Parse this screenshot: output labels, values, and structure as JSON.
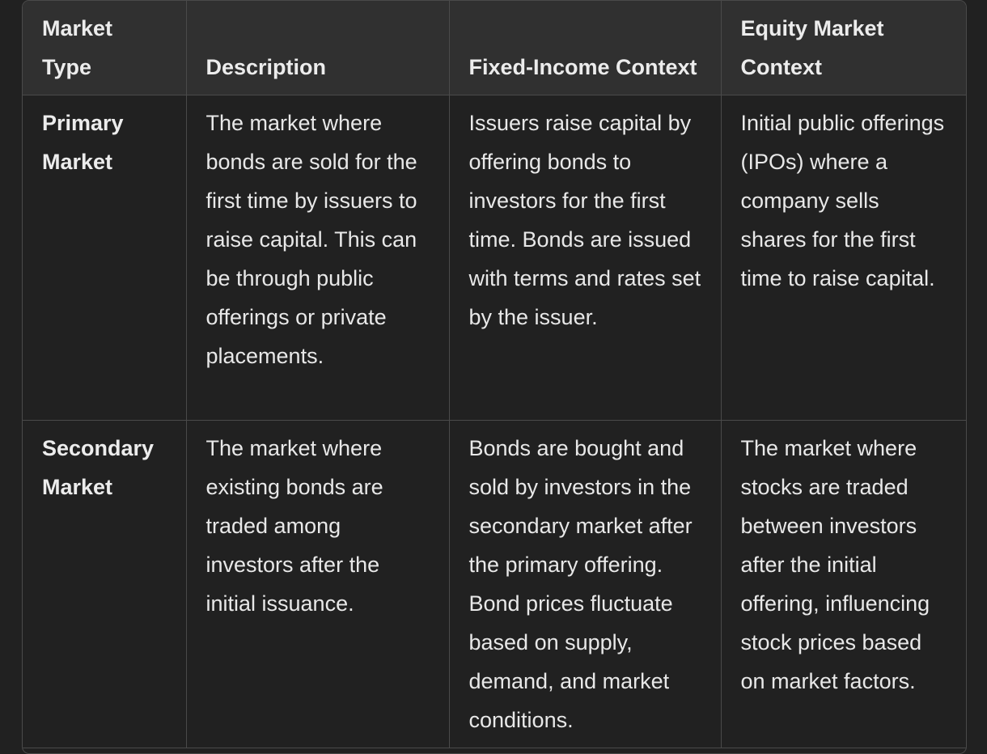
{
  "table": {
    "headers": [
      "Market Type",
      "Description",
      "Fixed-Income Context",
      "Equity Market Context"
    ],
    "rows": [
      {
        "market_type": "Primary Market",
        "description": "The market where bonds are sold for the first time by issuers to raise capital. This can be through public offerings or private placements.",
        "fixed_income": "Issuers raise capital by offering bonds to investors for the first time. Bonds are issued with terms and rates set by the issuer.",
        "equity": "Initial public offerings (IPOs) where a company sells shares for the first time to raise capital."
      },
      {
        "market_type": "Secondary Market",
        "description": "The market where existing bonds are traded among investors after the initial issuance.",
        "fixed_income": "Bonds are bought and sold by investors in the secondary market after the primary offering. Bond prices fluctuate based on supply, demand, and market conditions.",
        "equity": "The market where stocks are traded between investors after the initial offering, influencing stock prices based on market factors."
      }
    ]
  }
}
